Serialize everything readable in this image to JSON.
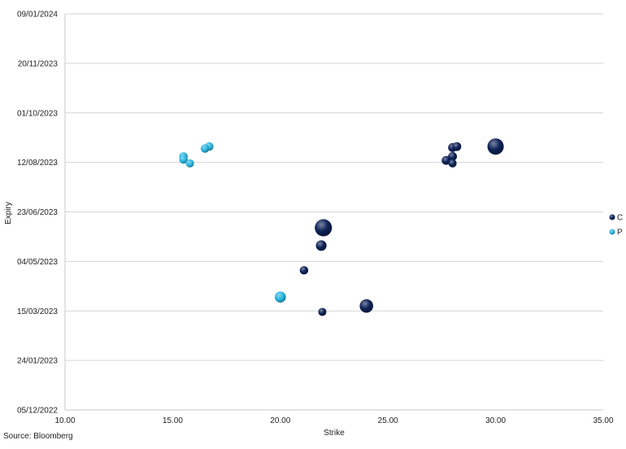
{
  "chart_data": {
    "type": "bubble",
    "xlabel": "Strike",
    "ylabel": "Expiry",
    "x_ticks": [
      "10.00",
      "15.00",
      "20.00",
      "25.00",
      "30.00",
      "35.00"
    ],
    "xlim": [
      10,
      35
    ],
    "y_ticks": [
      "05/12/2022",
      "24/01/2023",
      "15/03/2023",
      "04/05/2023",
      "23/06/2023",
      "12/08/2023",
      "01/10/2023",
      "20/11/2023",
      "09/01/2024"
    ],
    "ylim": [
      "05/12/2022",
      "09/01/2024"
    ],
    "grid": "horizontal",
    "legend_position": "right",
    "series": [
      {
        "name": "C",
        "color": "#0d2257",
        "points": [
          {
            "x": 30.0,
            "y": "28/08/2023",
            "size": 4.5
          },
          {
            "x": 28.0,
            "y": "27/08/2023",
            "size": 1.2
          },
          {
            "x": 28.2,
            "y": "28/08/2023",
            "size": 1.2
          },
          {
            "x": 28.0,
            "y": "18/08/2023",
            "size": 1.2
          },
          {
            "x": 27.7,
            "y": "14/08/2023",
            "size": 1.2
          },
          {
            "x": 28.0,
            "y": "11/08/2023",
            "size": 1.0
          },
          {
            "x": 22.0,
            "y": "07/06/2023",
            "size": 5.0
          },
          {
            "x": 21.9,
            "y": "20/05/2023",
            "size": 1.8
          },
          {
            "x": 21.1,
            "y": "25/04/2023",
            "size": 1.1
          },
          {
            "x": 24.0,
            "y": "20/03/2023",
            "size": 3.0
          },
          {
            "x": 21.95,
            "y": "14/03/2023",
            "size": 1.0
          }
        ]
      },
      {
        "name": "P",
        "color": "#2bb7e0",
        "points": [
          {
            "x": 16.7,
            "y": "28/08/2023",
            "size": 1.1
          },
          {
            "x": 16.5,
            "y": "26/08/2023",
            "size": 1.1
          },
          {
            "x": 15.5,
            "y": "18/08/2023",
            "size": 1.1
          },
          {
            "x": 15.5,
            "y": "15/08/2023",
            "size": 1.1
          },
          {
            "x": 15.8,
            "y": "11/08/2023",
            "size": 1.0
          },
          {
            "x": 20.0,
            "y": "29/03/2023",
            "size": 2.0
          }
        ]
      }
    ]
  },
  "source": "Source: Bloomberg"
}
